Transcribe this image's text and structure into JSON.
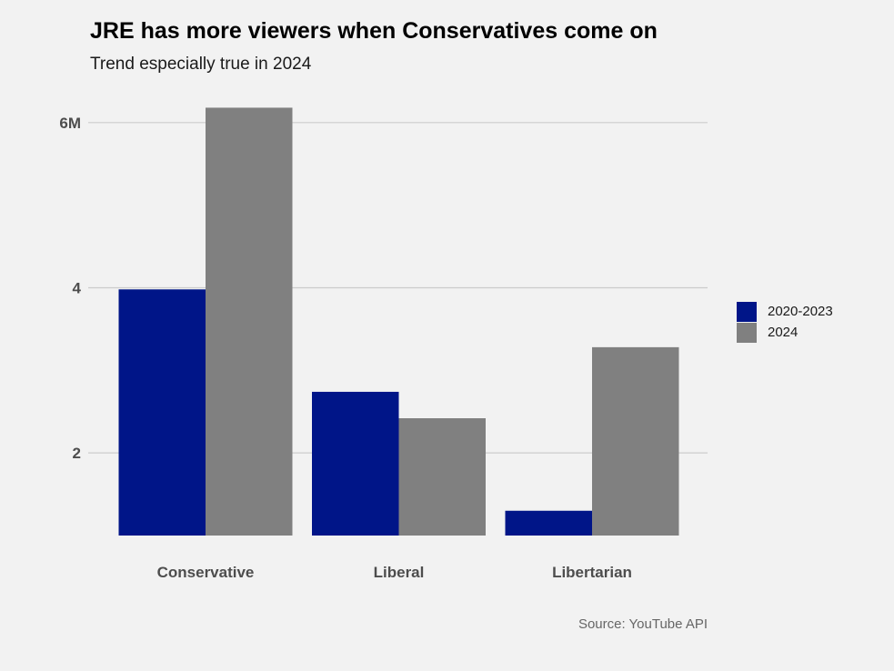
{
  "chart_data": {
    "type": "bar",
    "title": "JRE has more viewers when Conservatives come on",
    "subtitle": "Trend especially true in 2024",
    "caption": "Source: YouTube API",
    "xlabel": "",
    "ylabel": "",
    "categories": [
      "Conservative",
      "Liberal",
      "Libertarian"
    ],
    "series": [
      {
        "name": "2020-2023",
        "color": "#001588",
        "values": [
          3.98,
          2.74,
          1.3
        ]
      },
      {
        "name": "2024",
        "color": "#808080",
        "values": [
          6.18,
          2.42,
          3.28
        ]
      }
    ],
    "ylim": [
      1,
      6.35
    ],
    "yticks": [
      {
        "value": 2,
        "label": "2"
      },
      {
        "value": 4,
        "label": "4"
      },
      {
        "value": 6,
        "label": "6M"
      }
    ],
    "grid": true,
    "legend_position": "right"
  }
}
